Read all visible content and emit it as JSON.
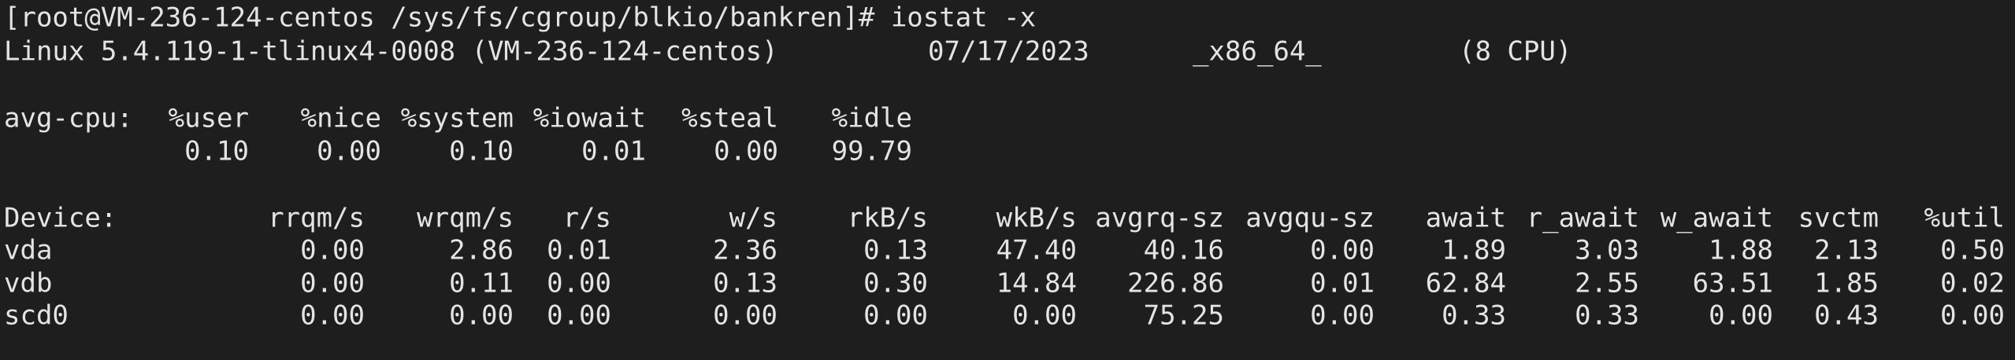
{
  "prompt": "[root@VM-236-124-centos /sys/fs/cgroup/blkio/bankren]# iostat -x",
  "system_info": {
    "kernel": "Linux 5.4.119-1-tlinux4-0008 (VM-236-124-centos)",
    "date": "07/17/2023",
    "arch": "_x86_64_",
    "cpus": "(8 CPU)"
  },
  "cpu_table": {
    "label": "avg-cpu:",
    "headers": [
      "%user",
      "%nice",
      "%system",
      "%iowait",
      "%steal",
      "%idle"
    ],
    "values": [
      "0.10",
      "0.00",
      "0.10",
      "0.01",
      "0.00",
      "99.79"
    ]
  },
  "device_table": {
    "headers": [
      "Device:",
      "rrqm/s",
      "wrqm/s",
      "r/s",
      "w/s",
      "rkB/s",
      "wkB/s",
      "avgrq-sz",
      "avgqu-sz",
      "await",
      "r_await",
      "w_await",
      "svctm",
      "%util"
    ],
    "rows": [
      [
        "vda",
        "0.00",
        "2.86",
        "0.01",
        "2.36",
        "0.13",
        "47.40",
        "40.16",
        "0.00",
        "1.89",
        "3.03",
        "1.88",
        "2.13",
        "0.50"
      ],
      [
        "vdb",
        "0.00",
        "0.11",
        "0.00",
        "0.13",
        "0.30",
        "14.84",
        "226.86",
        "0.01",
        "62.84",
        "2.55",
        "63.51",
        "1.85",
        "0.02"
      ],
      [
        "scd0",
        "0.00",
        "0.00",
        "0.00",
        "0.00",
        "0.00",
        "0.00",
        "75.25",
        "0.00",
        "0.33",
        "0.33",
        "0.00",
        "0.43",
        "0.00"
      ]
    ]
  }
}
